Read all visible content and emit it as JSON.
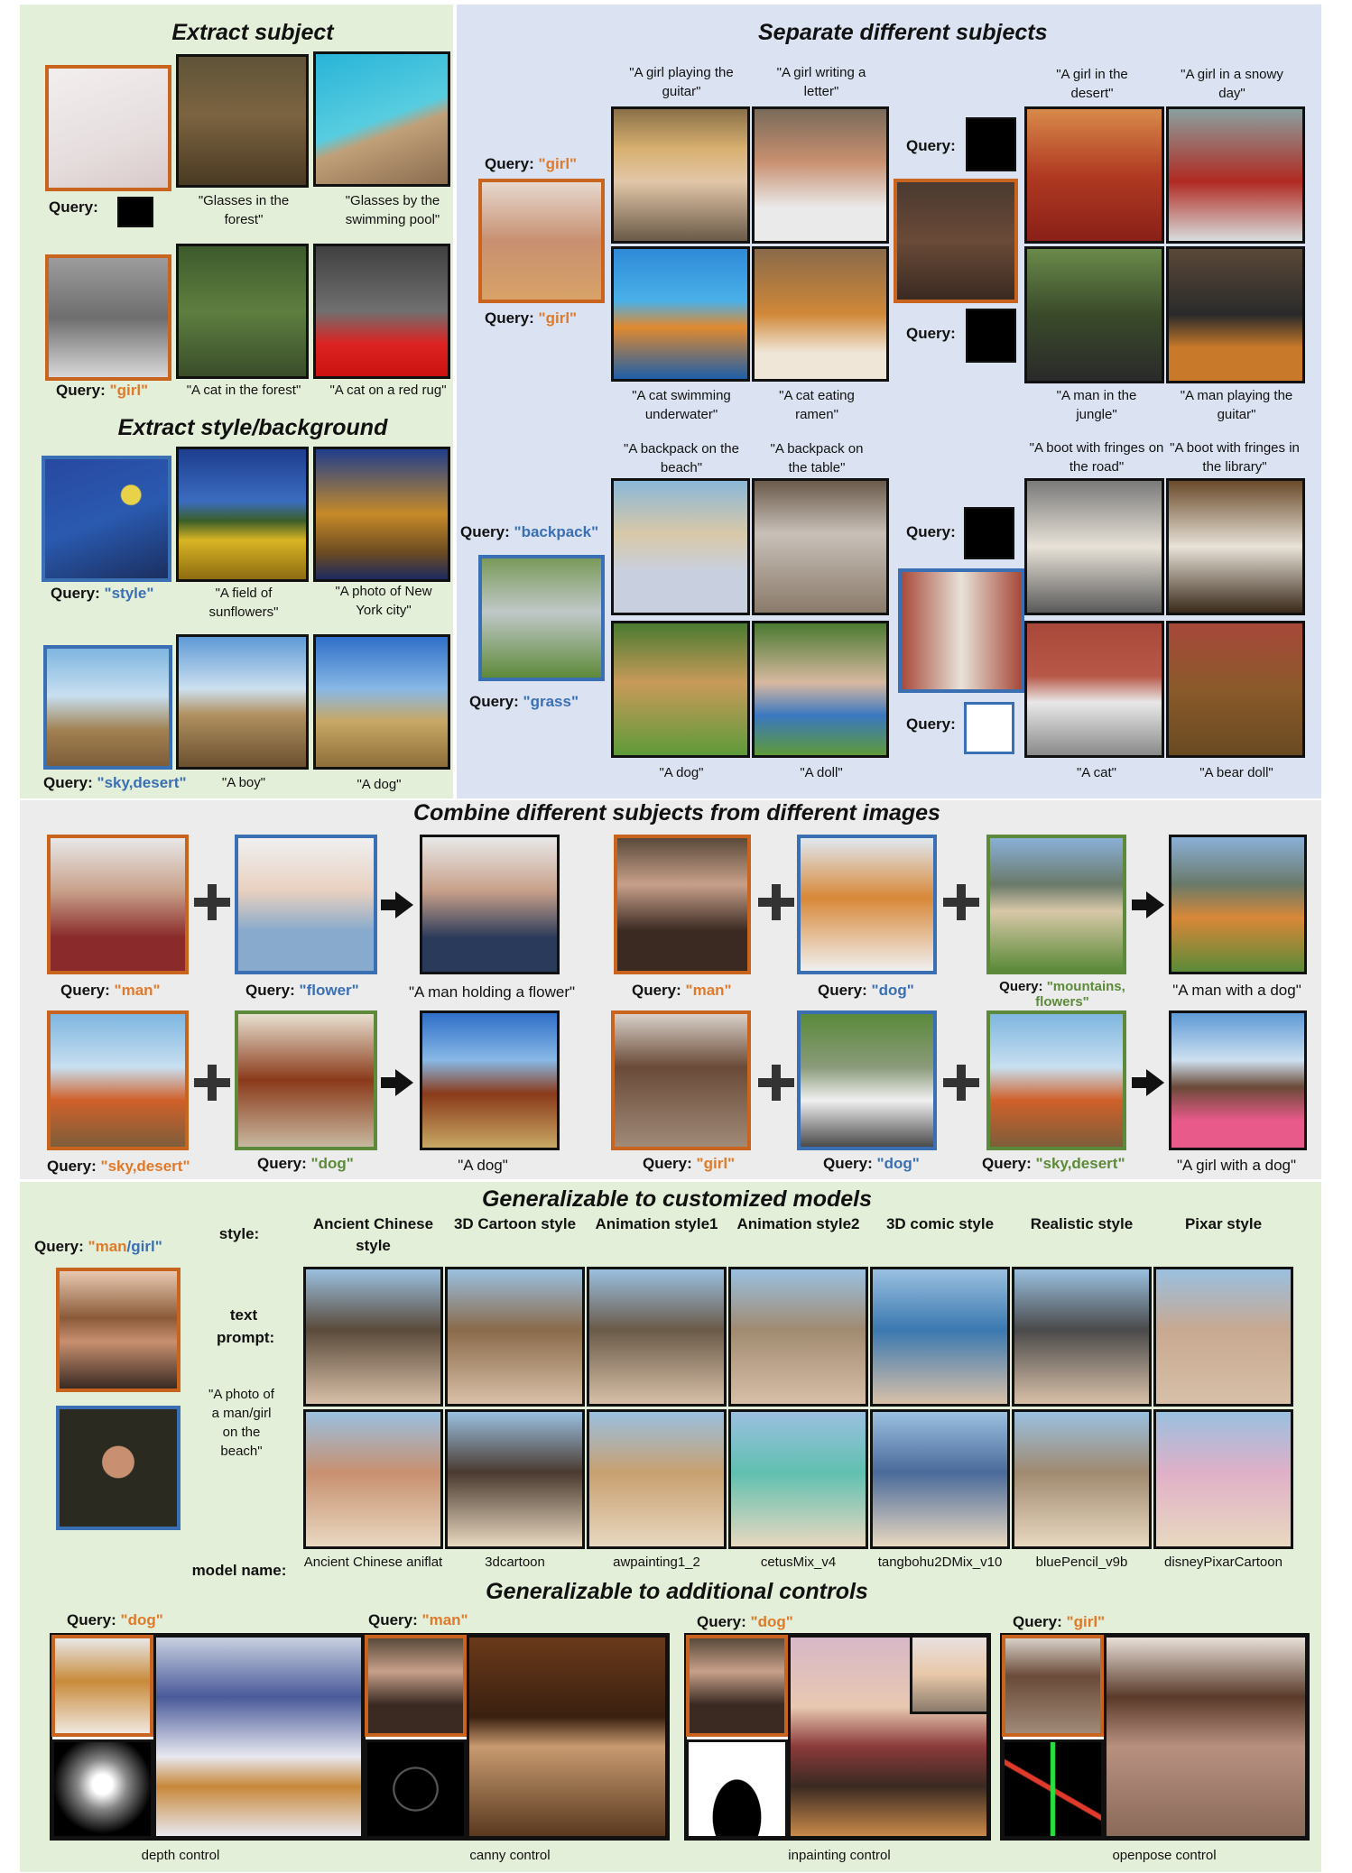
{
  "sections": {
    "extract_subject": "Extract subject",
    "separate": "Separate different subjects",
    "extract_style": "Extract style/background",
    "combine": "Combine different subjects from different images",
    "customized": "Generalizable to customized models",
    "controls": "Generalizable to additional controls"
  },
  "extract": {
    "query_label": "Query:",
    "glasses_caps": [
      "\"Glasses in the forest\"",
      "\"Glasses by the swimming pool\""
    ],
    "cat_query": "\"girl\"",
    "cat_caps": [
      "\"A cat in the forest\"",
      "\"A cat on a red rug\""
    ],
    "style_query": "\"style\"",
    "style_caps": [
      "\"A field of sunflowers\"",
      "\"A photo of New York city\""
    ],
    "bg_query": "\"sky,desert\"",
    "bg_caps": [
      "\"A boy\"",
      "\"A dog\""
    ]
  },
  "separate": {
    "girl_caps_top": [
      "\"A girl playing the guitar\"",
      "\"A girl writing a letter\""
    ],
    "q1": "\"girl\"",
    "q2": "\"girl\"",
    "cat_caps": [
      "\"A cat swimming underwater\"",
      "\"A cat eating ramen\""
    ],
    "couple_top": [
      "\"A girl in the desert\"",
      "\"A girl in a snowy day\""
    ],
    "couple_bottom": [
      "\"A man in the jungle\"",
      "\"A man playing the guitar\""
    ],
    "backpack_top": [
      "\"A backpack on the beach\"",
      "\"A backpack on the table\""
    ],
    "q_backpack": "\"backpack\"",
    "q_grass": "\"grass\"",
    "backpack_bottom": [
      "\"A dog\"",
      "\"A doll\""
    ],
    "boot_top": [
      "\"A boot with fringes on the road\"",
      "\"A boot with fringes in the library\""
    ],
    "boot_bottom": [
      "\"A cat\"",
      "\"A bear doll\""
    ]
  },
  "combine": {
    "r1a": {
      "q1": "\"man\"",
      "q2": "\"flower\"",
      "result": "\"A man holding a flower\""
    },
    "r1b": {
      "q1": "\"man\"",
      "q2": "\"dog\"",
      "q3": "\"mountains, flowers\"",
      "result": "\"A man with a dog\""
    },
    "r2a": {
      "q1": "\"sky,desert\"",
      "q2": "\"dog\"",
      "result": "\"A dog\""
    },
    "r2b": {
      "q1": "\"girl\"",
      "q2": "\"dog\"",
      "q3": "\"sky,desert\"",
      "result": "\"A girl with a dog\""
    }
  },
  "customized": {
    "query_prefix": "Query: ",
    "query_man": "\"man",
    "query_sep": "/",
    "query_girl": "girl\"",
    "style_label": "style:",
    "text_prompt_label": "text prompt:",
    "prompt": "\"A photo of a man/girl on the beach\"",
    "model_label": "model name:",
    "styles": [
      "Ancient Chinese style",
      "3D Cartoon style",
      "Animation style1",
      "Animation style2",
      "3D comic style",
      "Realistic style",
      "Pixar style"
    ],
    "models": [
      "Ancient Chinese aniflat",
      "3dcartoon",
      "awpainting1_2",
      "cetusMix_v4",
      "tangbohu2DMix_v10",
      "bluePencil_v9b",
      "disneyPixarCartoon"
    ]
  },
  "controls": {
    "queries": [
      "\"dog\"",
      "\"man\"",
      "\"dog\"",
      "\"girl\""
    ],
    "names": [
      "depth control",
      "canny control",
      "inpainting control",
      "openpose control"
    ]
  },
  "colors": {
    "green_bg": "#e4efd9",
    "blue_bg": "#dbe3f2",
    "gray_bg": "#ececec",
    "orange": "#c8641e",
    "blue": "#3a6fb4",
    "green": "#5d8a3a"
  }
}
